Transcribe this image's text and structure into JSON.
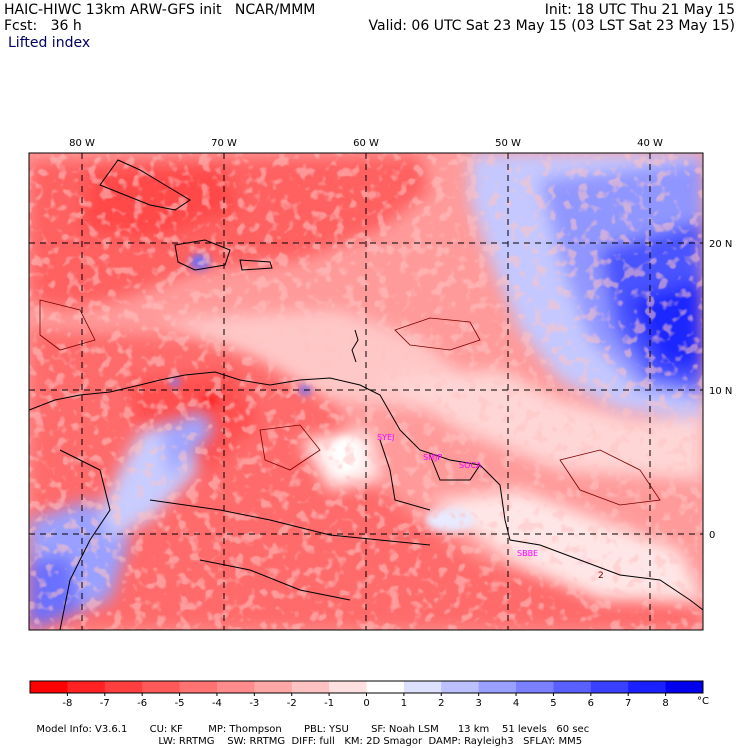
{
  "header": {
    "title": "HAIC-HIWC 13km ARW-GFS init",
    "org": "NCAR/MMM",
    "init": "Init: 18 UTC Thu 21 May 15",
    "fcst_label": "Fcst:",
    "fcst_value": "36 h",
    "valid": "Valid: 06 UTC Sat 23 May 15 (03 LST Sat 23 May 15)",
    "field": "Lifted index"
  },
  "map": {
    "lon_labels": [
      "80 W",
      "70 W",
      "60 W",
      "50 W",
      "40 W"
    ],
    "lat_labels": [
      "20 N",
      "10 N",
      "0"
    ],
    "stations": [
      "SYEJ",
      "SMJP",
      "SOCA",
      "SBBE"
    ],
    "contour_label": "2"
  },
  "colorbar": {
    "ticks": [
      "-8",
      "-7",
      "-6",
      "-5",
      "-4",
      "-3",
      "-2",
      "-1",
      "0",
      "1",
      "2",
      "3",
      "4",
      "5",
      "6",
      "7",
      "8"
    ],
    "unit": "°C",
    "colors": [
      "#ff0000",
      "#ff2222",
      "#ff3f3f",
      "#ff5a5a",
      "#ff7373",
      "#ff8c8c",
      "#ffa6a6",
      "#ffc2c2",
      "#ffe0e0",
      "#ffffff",
      "#dde0ff",
      "#bcc0ff",
      "#9aa0ff",
      "#7a80ff",
      "#5a60ff",
      "#3a40ff",
      "#1a20ff",
      "#0000ee"
    ]
  },
  "footer": {
    "line1": [
      "Model Info: V3.6.1",
      "CU: KF",
      "MP: Thompson",
      "PBL: YSU",
      "SF: Noah LSM",
      "13 km",
      "51 levels",
      "60 sec"
    ],
    "line2": [
      "LW: RRTMG",
      "SW: RRTMG",
      "DIFF: full",
      "KM: 2D Smagor",
      "DAMP: Rayleigh3",
      "SFLAY: MM5"
    ]
  }
}
